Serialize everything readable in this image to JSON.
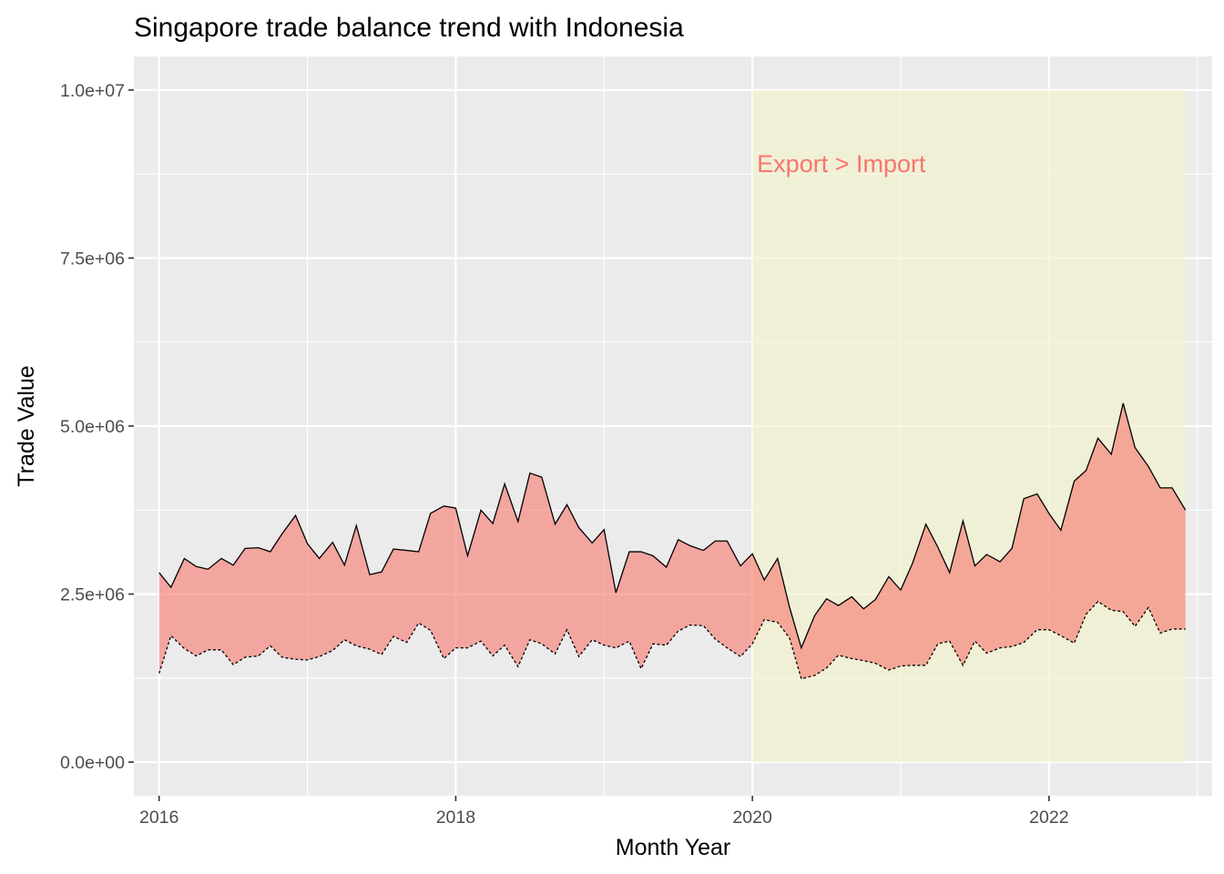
{
  "chart_data": {
    "type": "area",
    "title": "Singapore trade balance trend with Indonesia",
    "xlabel": "Month Year",
    "ylabel": "Trade Value",
    "xlim": [
      2015.83,
      2023.1
    ],
    "ylim": [
      -500000,
      10500000
    ],
    "x_ticks": [
      2016,
      2018,
      2020,
      2022
    ],
    "x_tick_labels": [
      "2016",
      "2018",
      "2020",
      "2022"
    ],
    "y_ticks": [
      0,
      2500000,
      5000000,
      7500000,
      10000000
    ],
    "y_tick_labels": [
      "0.0e+00",
      "2.5e+06",
      "5.0e+06",
      "7.5e+06",
      "1.0e+07"
    ],
    "grid": true,
    "colors": {
      "panel": "#ebebeb",
      "grid": "#ffffff",
      "ribbon": "#f8766d",
      "highlight": "#f2f2cc",
      "annotation": "#f8766d",
      "line": "#000000"
    },
    "highlight_band": {
      "x": [
        2020.0,
        2022.92
      ],
      "y": [
        0,
        10000000
      ]
    },
    "annotation": {
      "text": "Export > Import",
      "x": 2020.6,
      "y": 8900000
    },
    "x": [
      2016.0,
      2016.08,
      2016.17,
      2016.25,
      2016.33,
      2016.42,
      2016.5,
      2016.58,
      2016.67,
      2016.75,
      2016.83,
      2016.92,
      2017.0,
      2017.08,
      2017.17,
      2017.25,
      2017.33,
      2017.42,
      2017.5,
      2017.58,
      2017.67,
      2017.75,
      2017.83,
      2017.92,
      2018.0,
      2018.08,
      2018.17,
      2018.25,
      2018.33,
      2018.42,
      2018.5,
      2018.58,
      2018.67,
      2018.75,
      2018.83,
      2018.92,
      2019.0,
      2019.08,
      2019.17,
      2019.25,
      2019.33,
      2019.42,
      2019.5,
      2019.58,
      2019.67,
      2019.75,
      2019.83,
      2019.92,
      2020.0,
      2020.08,
      2020.17,
      2020.25,
      2020.33,
      2020.42,
      2020.5,
      2020.58,
      2020.67,
      2020.75,
      2020.83,
      2020.92,
      2021.0,
      2021.08,
      2021.17,
      2021.25,
      2021.33,
      2021.42,
      2021.5,
      2021.58,
      2021.67,
      2021.75,
      2021.83,
      2021.92,
      2022.0,
      2022.08,
      2022.17,
      2022.25,
      2022.33,
      2022.42,
      2022.5,
      2022.58,
      2022.67,
      2022.75,
      2022.83,
      2022.92
    ],
    "series": [
      {
        "name": "Export",
        "values": [
          2820000,
          2600000,
          3030000,
          2910000,
          2870000,
          3030000,
          2930000,
          3180000,
          3190000,
          3130000,
          3400000,
          3670000,
          3250000,
          3030000,
          3270000,
          2930000,
          3520000,
          2790000,
          2830000,
          3170000,
          3150000,
          3130000,
          3700000,
          3810000,
          3780000,
          3070000,
          3750000,
          3550000,
          4140000,
          3580000,
          4300000,
          4240000,
          3540000,
          3830000,
          3490000,
          3260000,
          3460000,
          2520000,
          3130000,
          3130000,
          3070000,
          2900000,
          3310000,
          3220000,
          3150000,
          3290000,
          3290000,
          2920000,
          3100000,
          2710000,
          3030000,
          2310000,
          1700000,
          2180000,
          2430000,
          2330000,
          2460000,
          2280000,
          2420000,
          2760000,
          2560000,
          2960000,
          3540000,
          3200000,
          2820000,
          3590000,
          2920000,
          3090000,
          2980000,
          3180000,
          3920000,
          3990000,
          3700000,
          3450000,
          4180000,
          4340000,
          4820000,
          4580000,
          5340000,
          4680000,
          4400000,
          4080000,
          4080000,
          3750000
        ]
      },
      {
        "name": "Import",
        "values": [
          1320000,
          1880000,
          1690000,
          1580000,
          1670000,
          1670000,
          1450000,
          1560000,
          1580000,
          1730000,
          1560000,
          1530000,
          1520000,
          1570000,
          1660000,
          1820000,
          1730000,
          1680000,
          1600000,
          1870000,
          1780000,
          2070000,
          1960000,
          1540000,
          1700000,
          1700000,
          1800000,
          1580000,
          1740000,
          1420000,
          1820000,
          1760000,
          1610000,
          1970000,
          1570000,
          1820000,
          1740000,
          1700000,
          1800000,
          1390000,
          1760000,
          1740000,
          1950000,
          2040000,
          2030000,
          1830000,
          1700000,
          1570000,
          1760000,
          2120000,
          2080000,
          1850000,
          1240000,
          1290000,
          1400000,
          1590000,
          1540000,
          1510000,
          1470000,
          1370000,
          1430000,
          1440000,
          1440000,
          1760000,
          1800000,
          1440000,
          1800000,
          1620000,
          1700000,
          1720000,
          1780000,
          1970000,
          1970000,
          1880000,
          1770000,
          2200000,
          2390000,
          2260000,
          2240000,
          2020000,
          2300000,
          1920000,
          1980000,
          1980000
        ]
      }
    ]
  }
}
